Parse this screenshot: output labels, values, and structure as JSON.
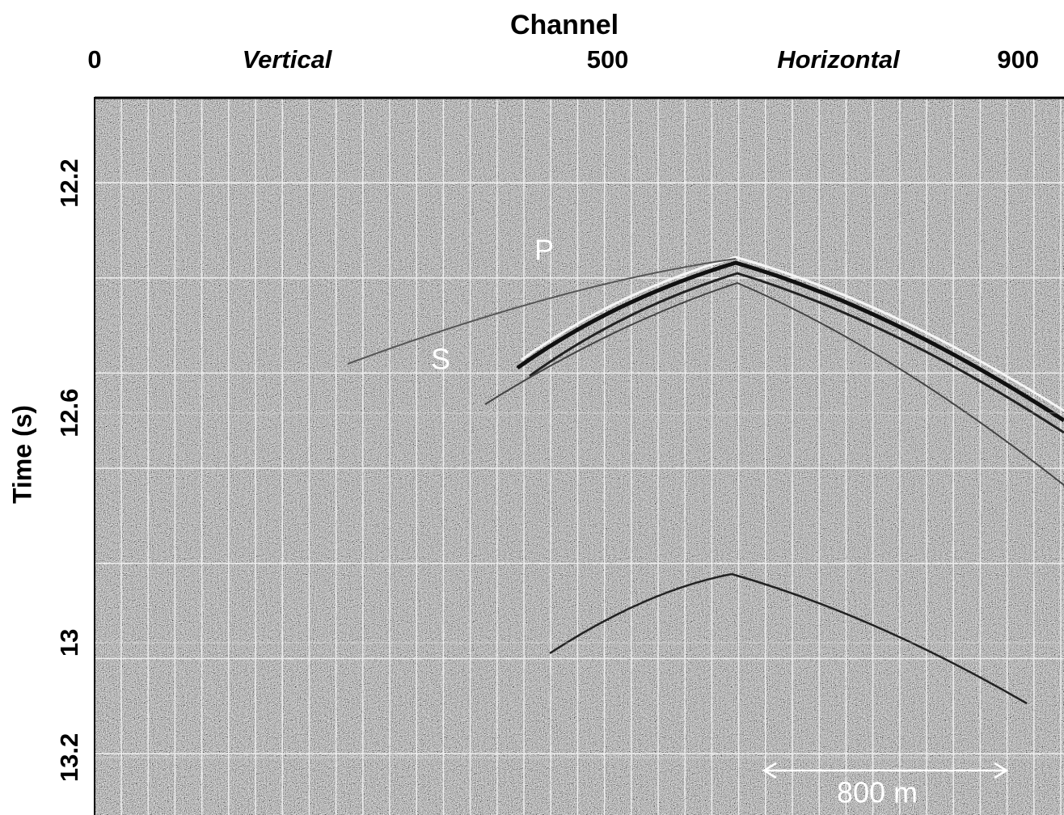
{
  "chart_data": {
    "type": "seismic-section",
    "title": "Channel",
    "y_label": "Time (s)",
    "xlim": [
      0,
      940
    ],
    "xticks": [
      0,
      500,
      900
    ],
    "ylim": [
      13.3,
      12.05
    ],
    "yticks": [
      12.2,
      12.6,
      13,
      13.2
    ],
    "sections": [
      "Vertical",
      "Horizontal"
    ],
    "annotations": [
      "P",
      "S",
      "800 m"
    ],
    "grid": true
  }
}
